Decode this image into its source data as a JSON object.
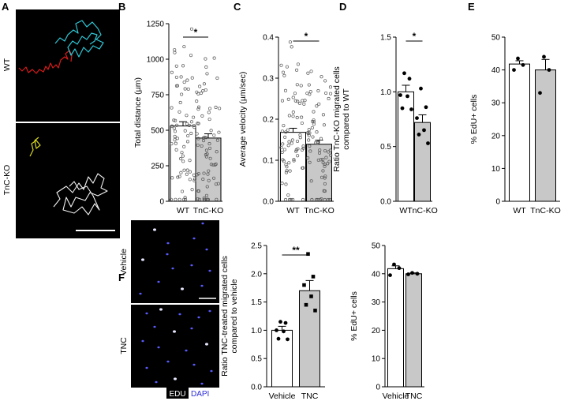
{
  "panels": {
    "A": {
      "label": "A",
      "row_labels": [
        "WT",
        "TnC-KO"
      ]
    },
    "F": {
      "label": "F",
      "row_labels": [
        "Vehicle",
        "TNC"
      ],
      "stain_legend": [
        "EDU",
        "DAPI"
      ]
    }
  },
  "colors": {
    "wt_bar": "#ffffff",
    "ko_bar": "#c8c8c8",
    "track_wt_1": "#d81b1b",
    "track_wt_2": "#2ec6d4",
    "track_ko_1": "#d8d81e",
    "track_ko_2": "#f2f2f2",
    "dapi": "#2b2bd6",
    "micrograph_bg": "#000000"
  },
  "chart_data": [
    {
      "panel": "B",
      "type": "bar",
      "categories": [
        "WT",
        "TnC-KO"
      ],
      "values": [
        530,
        445
      ],
      "errors": [
        30,
        30
      ],
      "ylabel": "Total distance (µm)",
      "ylim": [
        0,
        1250
      ],
      "yticks": [
        0,
        250,
        500,
        750,
        1000,
        1250
      ],
      "significance": "*",
      "individual_points": "many (~70 per group)"
    },
    {
      "panel": "C",
      "type": "bar",
      "categories": [
        "WT",
        "TnC-KO"
      ],
      "values": [
        0.168,
        0.139
      ],
      "errors": [
        0.01,
        0.01
      ],
      "ylabel": "Average velocity (µm/sec)",
      "ylim": [
        0,
        0.4
      ],
      "yticks": [
        0.0,
        0.1,
        0.2,
        0.3,
        0.4
      ],
      "significance": "*",
      "individual_points": "many (~70 per group)"
    },
    {
      "panel": "D",
      "type": "bar",
      "categories": [
        "WT",
        "TnC-KO"
      ],
      "values": [
        1.0,
        0.72
      ],
      "errors": [
        0.06,
        0.07
      ],
      "ylabel": "Ratio TnC-KO migrated cells compared to WT",
      "ylim": [
        0,
        1.5
      ],
      "yticks": [
        0.0,
        0.5,
        1.0,
        1.5
      ],
      "significance": "*",
      "points": [
        [
          1.17,
          1.12,
          0.97,
          0.96,
          0.85,
          0.84
        ],
        [
          1.03,
          0.86,
          0.76,
          0.65,
          0.61,
          0.53
        ]
      ]
    },
    {
      "panel": "E",
      "type": "bar",
      "categories": [
        "WT",
        "TnC-KO"
      ],
      "values": [
        41.8,
        40.0
      ],
      "errors": [
        1.0,
        3.2
      ],
      "ylabel": "% EdU+ cells",
      "ylim": [
        0,
        50
      ],
      "yticks": [
        0,
        10,
        20,
        30,
        40,
        50
      ],
      "points": [
        [
          43.5,
          41.5,
          40.0
        ],
        [
          44.0,
          40.0,
          33.0
        ]
      ]
    },
    {
      "panel": "F_migration",
      "type": "bar",
      "categories": [
        "Vehicle",
        "TNC"
      ],
      "values": [
        1.0,
        1.7
      ],
      "errors": [
        0.07,
        0.18
      ],
      "ylabel": "Ratio TNC-treated migrated cells compared to vehicle",
      "ylim": [
        0,
        2.5
      ],
      "yticks": [
        0.0,
        0.5,
        1.0,
        1.5,
        2.0,
        2.5
      ],
      "significance": "**",
      "points": [
        [
          1.15,
          1.13,
          1.0,
          0.98,
          0.85,
          0.84
        ],
        [
          2.35,
          1.95,
          1.8,
          1.6,
          1.45,
          1.35
        ]
      ]
    },
    {
      "panel": "F_edu",
      "type": "bar",
      "categories": [
        "Vehicle",
        "TNC"
      ],
      "values": [
        41.8,
        40.0
      ],
      "errors": [
        1.0,
        0.3
      ],
      "ylabel": "% EdU+ cells",
      "ylim": [
        0,
        50
      ],
      "yticks": [
        0,
        10,
        20,
        30,
        40,
        50
      ],
      "points": [
        [
          43.3,
          42.0,
          39.5
        ],
        [
          40.3,
          40.0,
          39.8
        ]
      ]
    }
  ]
}
